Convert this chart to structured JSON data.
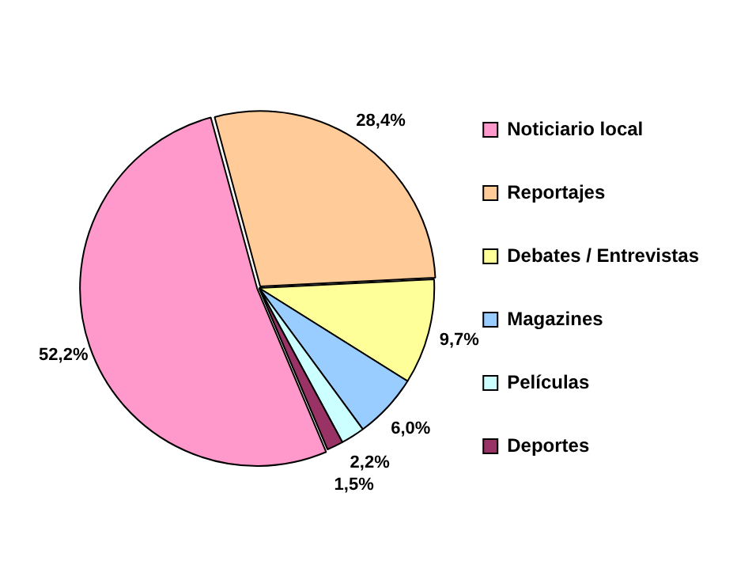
{
  "chart_data": {
    "type": "pie",
    "categories": [
      "Noticiario local",
      "Reportajes",
      "Debates / Entrevistas",
      "Magazines",
      "Películas",
      "Deportes"
    ],
    "values": [
      52.2,
      28.4,
      9.7,
      6.0,
      2.2,
      1.5
    ],
    "value_labels": [
      "52,2%",
      "28,4%",
      "9,7%",
      "6,0%",
      "2,2%",
      "1,5%"
    ],
    "colors": [
      "#ff99cc",
      "#ffcc99",
      "#ffff99",
      "#99ccff",
      "#ccffff",
      "#993366"
    ],
    "legend": "right"
  }
}
